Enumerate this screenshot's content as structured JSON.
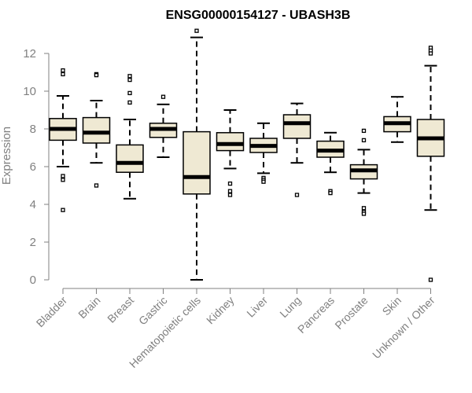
{
  "chart_data": {
    "type": "boxplot",
    "title": "ENSG00000154127 - UBASH3B",
    "ylabel": "Expression",
    "xlabel": "",
    "ylim": [
      0,
      13
    ],
    "yticks": [
      0,
      2,
      4,
      6,
      8,
      10,
      12
    ],
    "grid": false,
    "colors": {
      "box_fill": "#efe9d3",
      "box_stroke": "#000000",
      "axis": "#808080"
    },
    "categories": [
      "Bladder",
      "Brain",
      "Breast",
      "Gastric",
      "Hematopoietic cells",
      "Kidney",
      "Liver",
      "Lung",
      "Pancreas",
      "Prostate",
      "Skin",
      "Unknown / Other"
    ],
    "series": [
      {
        "category": "Bladder",
        "whisker_low": 6.0,
        "q1": 7.4,
        "median": 8.0,
        "q3": 8.55,
        "whisker_high": 9.75,
        "outliers": [
          11.1,
          10.9,
          5.5,
          5.3,
          3.7
        ]
      },
      {
        "category": "Brain",
        "whisker_low": 6.2,
        "q1": 7.25,
        "median": 7.8,
        "q3": 8.6,
        "whisker_high": 9.5,
        "outliers": [
          10.9,
          10.85,
          5.0
        ]
      },
      {
        "category": "Breast",
        "whisker_low": 4.3,
        "q1": 5.7,
        "median": 6.2,
        "q3": 7.15,
        "whisker_high": 8.5,
        "outliers": [
          10.8,
          10.6,
          9.9,
          9.4
        ]
      },
      {
        "category": "Gastric",
        "whisker_low": 6.5,
        "q1": 7.55,
        "median": 8.0,
        "q3": 8.3,
        "whisker_high": 9.3,
        "outliers": [
          9.7
        ]
      },
      {
        "category": "Hematopoietic cells",
        "whisker_low": 0.0,
        "q1": 4.55,
        "median": 5.45,
        "q3": 7.85,
        "whisker_high": 12.85,
        "outliers": [
          13.2
        ]
      },
      {
        "category": "Kidney",
        "whisker_low": 5.9,
        "q1": 6.85,
        "median": 7.2,
        "q3": 7.8,
        "whisker_high": 9.0,
        "outliers": [
          5.1,
          4.7,
          4.5
        ]
      },
      {
        "category": "Liver",
        "whisker_low": 5.65,
        "q1": 6.75,
        "median": 7.1,
        "q3": 7.5,
        "whisker_high": 8.3,
        "outliers": [
          5.4,
          5.3,
          5.2
        ]
      },
      {
        "category": "Lung",
        "whisker_low": 6.2,
        "q1": 7.5,
        "median": 8.3,
        "q3": 8.75,
        "whisker_high": 9.35,
        "outliers": [
          4.5
        ]
      },
      {
        "category": "Pancreas",
        "whisker_low": 5.7,
        "q1": 6.5,
        "median": 6.85,
        "q3": 7.35,
        "whisker_high": 7.8,
        "outliers": [
          4.7,
          4.6
        ]
      },
      {
        "category": "Prostate",
        "whisker_low": 4.6,
        "q1": 5.35,
        "median": 5.8,
        "q3": 6.1,
        "whisker_high": 6.9,
        "outliers": [
          7.9,
          7.4,
          3.8,
          3.6,
          3.5
        ]
      },
      {
        "category": "Skin",
        "whisker_low": 7.3,
        "q1": 7.85,
        "median": 8.3,
        "q3": 8.65,
        "whisker_high": 9.7,
        "outliers": []
      },
      {
        "category": "Unknown / Other",
        "whisker_low": 3.7,
        "q1": 6.55,
        "median": 7.5,
        "q3": 8.5,
        "whisker_high": 11.35,
        "outliers": [
          12.3,
          12.15,
          12.0,
          0.0
        ]
      }
    ]
  }
}
